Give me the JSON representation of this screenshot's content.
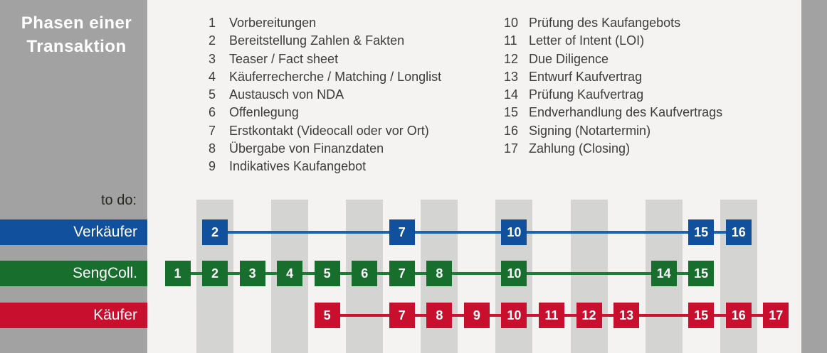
{
  "colors": {
    "panel_gray": "#a2a2a2",
    "stripe_gray": "#d4d4d2",
    "background": "#f4f3f1",
    "list_text": "#3d3c3a",
    "todo_text": "#262624",
    "title_text": "#ffffff"
  },
  "sidebar": {
    "title_line1": "Phasen einer",
    "title_line2": "Transaktion",
    "todo_label": "to do:"
  },
  "phases_left": [
    {
      "num": "1",
      "label": "Vorbereitungen"
    },
    {
      "num": "2",
      "label": "Bereitstellung Zahlen & Fakten"
    },
    {
      "num": "3",
      "label": "Teaser / Fact sheet"
    },
    {
      "num": "4",
      "label": "Käuferrecherche / Matching / Longlist"
    },
    {
      "num": "5",
      "label": "Austausch von NDA"
    },
    {
      "num": "6",
      "label": "Offenlegung"
    },
    {
      "num": "7",
      "label": "Erstkontakt (Videocall oder vor Ort)"
    },
    {
      "num": "8",
      "label": "Übergabe von Finanzdaten"
    },
    {
      "num": "9",
      "label": "Indikatives Kaufangebot"
    }
  ],
  "phases_right": [
    {
      "num": "10",
      "label": "Prüfung des Kaufangebots"
    },
    {
      "num": "11",
      "label": "Letter of Intent (LOI)"
    },
    {
      "num": "12",
      "label": "Due Diligence"
    },
    {
      "num": "13",
      "label": "Entwurf Kaufvertrag"
    },
    {
      "num": "14",
      "label": "Prüfung Kaufvertrag"
    },
    {
      "num": "15",
      "label": "Endverhandlung des Kaufvertrags"
    },
    {
      "num": "16",
      "label": "Signing (Notartermin)"
    },
    {
      "num": "17",
      "label": "Zahlung (Closing)"
    }
  ],
  "timeline": {
    "phase_count": 17,
    "striped_phases": [
      2,
      4,
      6,
      8,
      10,
      12,
      14,
      16
    ]
  },
  "lanes": [
    {
      "id": "verkaeufer",
      "label": "Verkäufer",
      "box_color": "#11509d",
      "line_color": "#1b64b2",
      "phases": [
        2,
        7,
        10,
        15,
        16
      ]
    },
    {
      "id": "sengcoll",
      "label": "SengColl.",
      "box_color": "#176e2d",
      "line_color": "#1d7d36",
      "phases": [
        1,
        2,
        3,
        4,
        5,
        6,
        7,
        8,
        10,
        14,
        15
      ]
    },
    {
      "id": "kaeufer",
      "label": "Käufer",
      "box_color": "#c8102e",
      "line_color": "#cd1331",
      "phases": [
        5,
        7,
        8,
        9,
        10,
        11,
        12,
        13,
        15,
        16,
        17
      ]
    }
  ]
}
